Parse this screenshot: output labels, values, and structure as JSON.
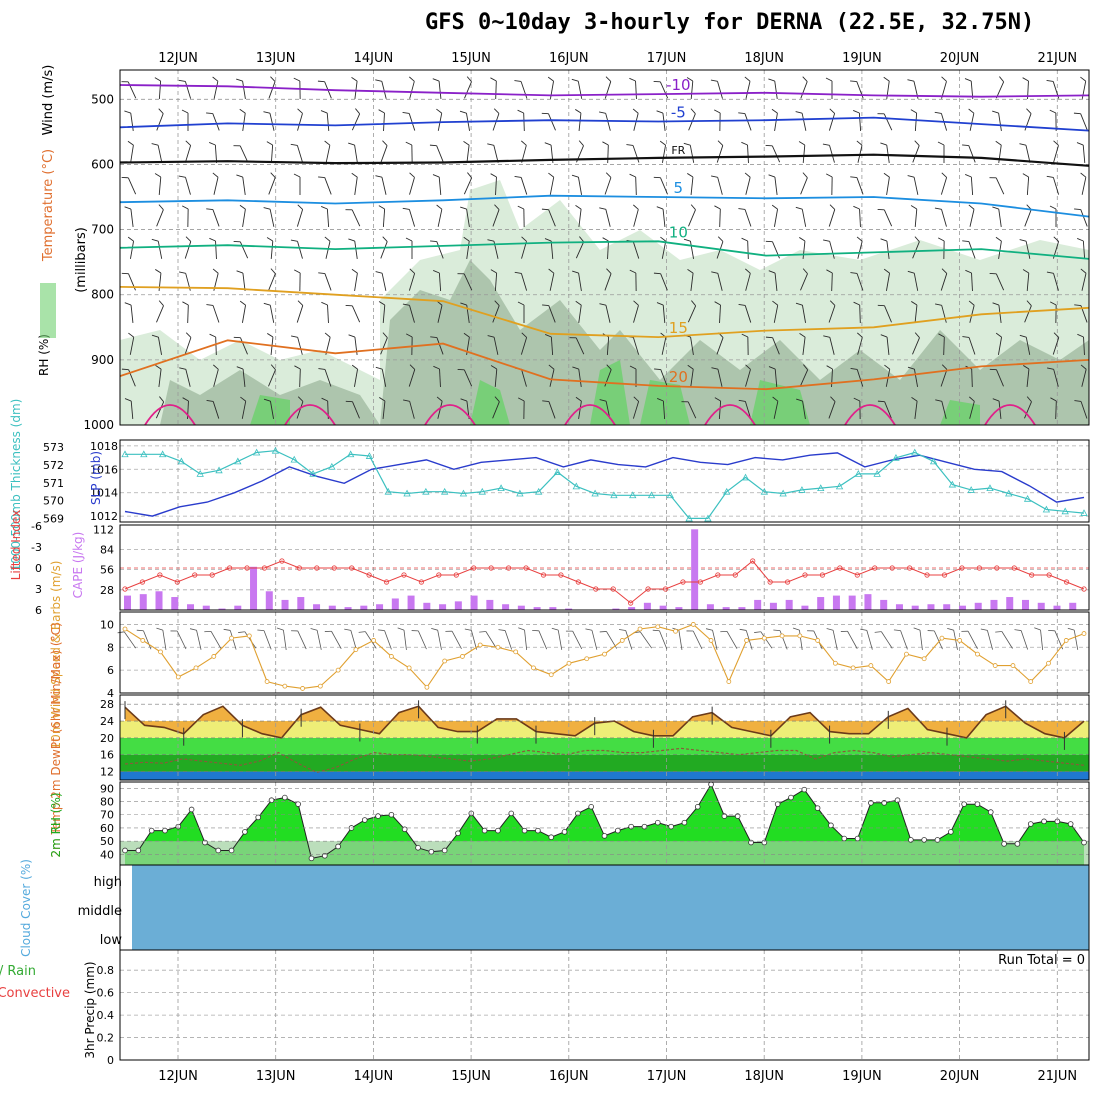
{
  "title": "GFS 0~10day 3-hourly for DERNA (22.5E, 32.75N)",
  "colors": {
    "rh_light": "#d6ead6",
    "rh_mid": "#9db89d",
    "rh_green": "#6fd06f",
    "wind": "#2a2a2a",
    "slp": "#2a3ccc",
    "thickness": "#3cc0c0",
    "cape": "#c878f0",
    "lifted": "#e84040",
    "wind10": "#e0a030",
    "temp_fill": "#f0b040",
    "dew_fill": "#33cc33",
    "rh_fill": "#22dd22",
    "cloud": "#6baed6"
  },
  "chart_data": [
    {
      "panel": "upper_air",
      "type": "contour",
      "ylabel_parts": {
        "rh": "RH (%)",
        "temp": "Temperature (°C)",
        "wind": "Wind (m/s)",
        "unit": "(millibars)"
      },
      "y_ticks": [
        500,
        600,
        700,
        800,
        900,
        1000
      ],
      "dates": [
        "12JUN",
        "13JUN",
        "14JUN",
        "15JUN",
        "16JUN",
        "17JUN",
        "18JUN",
        "19JUN",
        "20JUN",
        "21JUN"
      ],
      "temperature_contours": [
        {
          "value": -10,
          "label": "-10",
          "level": [
            478,
            480,
            486,
            490,
            494,
            492,
            490,
            494,
            496,
            494
          ]
        },
        {
          "value": -5,
          "label": "-5",
          "level": [
            543,
            537,
            540,
            535,
            532,
            534,
            532,
            528,
            538,
            548
          ]
        },
        {
          "value": 0,
          "label": "FR",
          "level": [
            597,
            595,
            598,
            597,
            593,
            590,
            588,
            585,
            590,
            602
          ]
        },
        {
          "value": 5,
          "label": "5",
          "level": [
            658,
            655,
            660,
            655,
            648,
            650,
            652,
            650,
            660,
            680
          ]
        },
        {
          "value": 10,
          "label": "10",
          "level": [
            728,
            724,
            730,
            725,
            720,
            718,
            740,
            735,
            730,
            745
          ]
        },
        {
          "value": 15,
          "label": "15",
          "level": [
            788,
            790,
            800,
            810,
            860,
            865,
            855,
            850,
            830,
            820
          ]
        },
        {
          "value": 20,
          "label": "20",
          "level": [
            925,
            870,
            890,
            875,
            930,
            940,
            945,
            930,
            910,
            900
          ]
        }
      ]
    },
    {
      "panel": "slp_thickness",
      "type": "line",
      "ylabel_left": "1000-500mb Thickness (dm)",
      "ylabel_right": "SLP (mb)",
      "left_ticks": [
        569,
        570,
        571,
        572,
        573
      ],
      "right_ticks": [
        1012,
        1014,
        1016,
        1018
      ],
      "series": [
        {
          "name": "SLP",
          "values": [
            1012.4,
            1012.0,
            1012.8,
            1013.2,
            1014.0,
            1015.0,
            1016.2,
            1015.4,
            1014.8,
            1016.0,
            1016.4,
            1016.8,
            1016.0,
            1016.6,
            1016.8,
            1017.0,
            1016.2,
            1016.8,
            1016.4,
            1016.2,
            1017.0,
            1016.6,
            1016.4,
            1017.0,
            1016.8,
            1017.2,
            1017.4,
            1016.2,
            1016.8,
            1017.2,
            1016.6,
            1016.0,
            1015.8,
            1014.6,
            1013.2,
            1013.6
          ]
        },
        {
          "name": "Thickness",
          "values": [
            572.6,
            572.6,
            572.6,
            572.2,
            571.5,
            571.7,
            572.2,
            572.7,
            572.8,
            572.3,
            571.5,
            571.9,
            572.6,
            572.5,
            570.5,
            570.4,
            570.5,
            570.5,
            570.4,
            570.5,
            570.7,
            570.4,
            570.5,
            571.6,
            570.8,
            570.4,
            570.3,
            570.3,
            570.3,
            570.3,
            569.0,
            569.0,
            570.5,
            571.3,
            570.5,
            570.4,
            570.6,
            570.7,
            570.8,
            571.5,
            571.5,
            572.4,
            572.7,
            572.2,
            570.9,
            570.6,
            570.7,
            570.4,
            570.1,
            569.5,
            569.4,
            569.3
          ]
        }
      ]
    },
    {
      "panel": "cape_lifted",
      "type": "bar",
      "ylabel_left": "Lifted Index",
      "ylabel_right": "CAPE (J/kg)",
      "left_ticks": [
        "-6",
        "-3",
        "0",
        "3",
        "6"
      ],
      "right_ticks": [
        28,
        56,
        84,
        112
      ],
      "cape": [
        20,
        22,
        26,
        18,
        8,
        6,
        2,
        6,
        60,
        26,
        14,
        18,
        8,
        6,
        4,
        6,
        8,
        16,
        20,
        10,
        8,
        12,
        20,
        14,
        8,
        6,
        4,
        4,
        2,
        0,
        0,
        2,
        4,
        10,
        6,
        4,
        112,
        8,
        4,
        4,
        14,
        10,
        14,
        6,
        18,
        20,
        20,
        22,
        14,
        8,
        6,
        8,
        8,
        6,
        10,
        14,
        18,
        14,
        10,
        6,
        10
      ],
      "lifted_index": [
        3,
        2,
        1,
        2,
        1,
        1,
        0,
        0,
        0,
        -1,
        0,
        0,
        0,
        0,
        1,
        2,
        1,
        2,
        1,
        1,
        0,
        0,
        0,
        0,
        1,
        1,
        2,
        3,
        3,
        5,
        3,
        3,
        2,
        2,
        1,
        1,
        -1,
        2,
        2,
        1,
        1,
        0,
        1,
        0,
        0,
        0,
        1,
        1,
        0,
        0,
        0,
        0,
        1,
        1,
        2,
        3
      ]
    },
    {
      "panel": "wind10m",
      "type": "line",
      "ylabel": "10m Wind Speed & Barbs (m/s)",
      "y_ticks": [
        4,
        6,
        8,
        10
      ],
      "values": [
        9.6,
        8.6,
        7.6,
        5.4,
        6.2,
        7.2,
        8.8,
        9.0,
        5.0,
        4.6,
        4.4,
        4.6,
        6.0,
        7.8,
        8.6,
        7.2,
        6.2,
        4.5,
        6.8,
        7.2,
        8.2,
        8.0,
        7.6,
        6.2,
        5.6,
        6.6,
        7.0,
        7.4,
        8.6,
        9.6,
        9.8,
        9.4,
        10.0,
        8.6,
        5.0,
        8.6,
        8.8,
        9.0,
        9.0,
        8.6,
        6.6,
        6.2,
        6.4,
        5.0,
        7.4,
        7.0,
        8.8,
        8.6,
        7.4,
        6.4,
        6.4,
        5.0,
        6.6,
        8.6,
        9.2
      ]
    },
    {
      "panel": "temp_dew",
      "type": "area",
      "ylabel": "2m Temp 2m DewPt (6hr Min/Max) (°C)",
      "y_ticks": [
        12,
        16,
        20,
        24,
        28
      ],
      "temp": [
        27.3,
        23.0,
        22.5,
        21.0,
        25.5,
        27.5,
        23.0,
        21.0,
        20.0,
        25.5,
        27.3,
        23.0,
        22.0,
        21.0,
        26.0,
        27.5,
        22.5,
        21.5,
        21.5,
        24.5,
        24.5,
        21.5,
        21.0,
        20.5,
        23.5,
        24.0,
        21.5,
        20.5,
        20.5,
        25.0,
        26.0,
        22.5,
        21.5,
        20.5,
        25.0,
        26.0,
        21.5,
        21.0,
        21.0,
        25.0,
        27.0,
        22.0,
        21.0,
        20.0,
        25.5,
        27.5,
        23.5,
        21.0,
        20.0,
        24.0
      ],
      "dewpt": [
        13.8,
        14.2,
        14.0,
        15.0,
        14.5,
        14.0,
        13.5,
        14.5,
        16.5,
        14.0,
        11.8,
        13.0,
        15.0,
        16.5,
        16.0,
        16.0,
        15.5,
        15.0,
        14.5,
        15.0,
        16.0,
        17.0,
        16.5,
        16.0,
        17.0,
        17.0,
        16.5,
        16.5,
        17.0,
        17.5,
        17.0,
        16.5,
        16.0,
        16.5,
        17.0,
        17.0,
        15.0,
        16.5,
        17.0,
        16.5,
        15.5,
        16.0,
        16.5,
        16.0,
        15.5,
        15.0,
        14.5,
        15.0,
        14.5,
        14.0,
        13.5
      ]
    },
    {
      "panel": "rh2m",
      "type": "area",
      "ylabel": "2m RH (%)",
      "y_ticks": [
        40,
        50,
        60,
        70,
        80,
        90
      ],
      "values": [
        43,
        43,
        58,
        58,
        61,
        74,
        49,
        43,
        43,
        57,
        68,
        81,
        83,
        78,
        37,
        39,
        46,
        60,
        66,
        69,
        70,
        59,
        45,
        42,
        43,
        56,
        71,
        58,
        58,
        71,
        58,
        58,
        53,
        57,
        71,
        76,
        54,
        58,
        61,
        61,
        64,
        61,
        64,
        76,
        93,
        69,
        69,
        49,
        49,
        78,
        83,
        89,
        75,
        62,
        52,
        52,
        79,
        79,
        81,
        51,
        51,
        51,
        57,
        78,
        78,
        72,
        48,
        48,
        63,
        65,
        65,
        63,
        49
      ]
    },
    {
      "panel": "cloud_cover",
      "type": "heatmap",
      "ylabel": "Cloud Cover (%)",
      "levels": [
        "high",
        "middle",
        "low"
      ]
    },
    {
      "panel": "precip",
      "type": "bar",
      "ylabel": "3hr Precip (mm)",
      "legend_total_rain": "Total / Rain",
      "legend_convective": "Convective",
      "y_ticks": [
        0,
        0.2,
        0.4,
        0.6,
        0.8
      ],
      "run_total_label": "Run Total = 0",
      "values": []
    }
  ]
}
